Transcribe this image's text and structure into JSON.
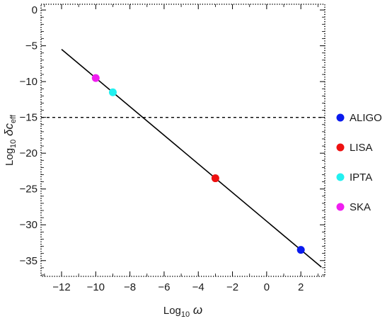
{
  "chart_data": {
    "type": "scatter",
    "xlabel": "Log10 ω",
    "ylabel": "Log10 δc_eff",
    "xlabel_parts": {
      "main": "Log",
      "sub": "10",
      "var": "ω"
    },
    "ylabel_parts": {
      "main": "Log",
      "sub": "10",
      "var": "δc",
      "var_sub": "eff"
    },
    "xlim": [
      -13.2,
      3.4
    ],
    "ylim": [
      -37.2,
      0.8
    ],
    "xticks": [
      -12,
      -10,
      -8,
      -6,
      -4,
      -2,
      0,
      2
    ],
    "xtick_labels": [
      "−12",
      "−10",
      "−8",
      "−6",
      "−4",
      "−2",
      "0",
      "2"
    ],
    "yticks": [
      0,
      -5,
      -10,
      -15,
      -20,
      -25,
      -30,
      -35
    ],
    "ytick_labels": [
      "0",
      "−5",
      "−10",
      "−15",
      "−20",
      "−25",
      "−30",
      "−35"
    ],
    "grid": false,
    "frame_style": "dotted",
    "legend_position": "right",
    "series": [
      {
        "name": "ALIGO",
        "color": "#0a1aee",
        "x": [
          2.0
        ],
        "y": [
          -33.5
        ]
      },
      {
        "name": "LISA",
        "color": "#ee1111",
        "x": [
          -3.0
        ],
        "y": [
          -23.5
        ]
      },
      {
        "name": "IPTA",
        "color": "#22f0f0",
        "x": [
          -9.0
        ],
        "y": [
          -11.5
        ]
      },
      {
        "name": "SKA",
        "color": "#f01ef0",
        "x": [
          -10.0
        ],
        "y": [
          -9.5
        ]
      }
    ],
    "line": {
      "x": [
        -12.0,
        3.2
      ],
      "y": [
        -5.5,
        -35.9
      ],
      "color": "#000000",
      "style": "solid"
    },
    "hline": {
      "y": -15,
      "color": "#000000",
      "style": "dashed"
    }
  }
}
